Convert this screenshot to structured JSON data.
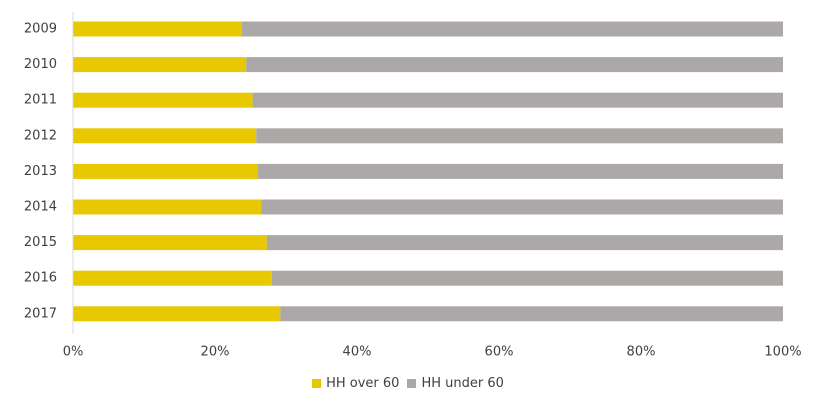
{
  "chart_data": {
    "type": "bar",
    "orientation": "horizontal",
    "stacked": "percent",
    "categories": [
      "2009",
      "2010",
      "2011",
      "2012",
      "2013",
      "2014",
      "2015",
      "2016",
      "2017"
    ],
    "series": [
      {
        "name": "HH over 60",
        "color": "#E8C800",
        "values": [
          23.8,
          24.4,
          25.3,
          25.8,
          26.0,
          26.5,
          27.3,
          28.0,
          29.2
        ]
      },
      {
        "name": "HH under 60",
        "color": "#ABA8A7",
        "values": [
          76.2,
          75.6,
          74.7,
          74.2,
          74.0,
          73.5,
          72.7,
          72.0,
          70.8
        ]
      }
    ],
    "xlim": [
      0,
      100
    ],
    "x_ticks": [
      "0%",
      "20%",
      "40%",
      "60%",
      "80%",
      "100%"
    ],
    "grid": false,
    "legend_position": "bottom"
  }
}
